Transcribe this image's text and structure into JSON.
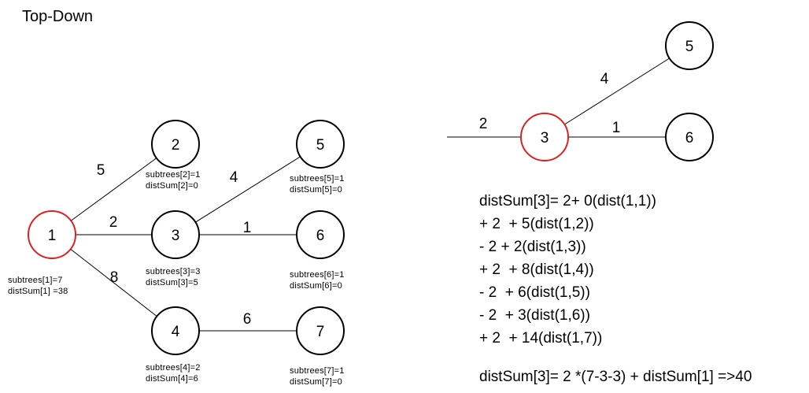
{
  "title": "Top-Down",
  "left_tree": {
    "nodes": [
      {
        "id": "1",
        "label": "1",
        "highlight": true,
        "info": [
          "subtrees[1]=7",
          "distSum[1] =38"
        ]
      },
      {
        "id": "2",
        "label": "2",
        "highlight": false,
        "info": [
          "subtrees[2]=1",
          "distSum[2]=0"
        ]
      },
      {
        "id": "3",
        "label": "3",
        "highlight": false,
        "info": [
          "subtrees[3]=3",
          "distSum[3]=5"
        ]
      },
      {
        "id": "4",
        "label": "4",
        "highlight": false,
        "info": [
          "subtrees[4]=2",
          "distSum[4]=6"
        ]
      },
      {
        "id": "5",
        "label": "5",
        "highlight": false,
        "info": [
          "subtrees[5]=1",
          "distSum[5]=0"
        ]
      },
      {
        "id": "6",
        "label": "6",
        "highlight": false,
        "info": [
          "subtrees[6]=1",
          "distSum[6]=0"
        ]
      },
      {
        "id": "7",
        "label": "7",
        "highlight": false,
        "info": [
          "subtrees[7]=1",
          "distSum[7]=0"
        ]
      }
    ],
    "edges": [
      {
        "from": "1",
        "to": "2",
        "weight": "5"
      },
      {
        "from": "1",
        "to": "3",
        "weight": "2"
      },
      {
        "from": "1",
        "to": "4",
        "weight": "8"
      },
      {
        "from": "3",
        "to": "5",
        "weight": "4"
      },
      {
        "from": "3",
        "to": "6",
        "weight": "1"
      },
      {
        "from": "4",
        "to": "7",
        "weight": "6"
      }
    ]
  },
  "right_tree": {
    "nodes": [
      {
        "id": "3",
        "label": "3",
        "highlight": true
      },
      {
        "id": "5",
        "label": "5",
        "highlight": false
      },
      {
        "id": "6",
        "label": "6",
        "highlight": false
      }
    ],
    "edges": [
      {
        "from": "parent",
        "to": "3",
        "weight": "2"
      },
      {
        "from": "3",
        "to": "5",
        "weight": "4"
      },
      {
        "from": "3",
        "to": "6",
        "weight": "1"
      }
    ]
  },
  "formula_lines": [
    "distSum[3]= 2+ 0(dist(1,1))",
    "+ 2  + 5(dist(1,2))",
    "- 2 + 2(dist(1,3))",
    "+ 2  + 8(dist(1,4))",
    "- 2  + 6(dist(1,5))",
    "- 2  + 3(dist(1,6))",
    "+ 2  + 14(dist(1,7))"
  ],
  "summary": "distSum[3]= 2 *(7-3-3) + distSum[1] =>40",
  "colors": {
    "highlight_stroke": "#e02020",
    "node_stroke": "#000000",
    "edge": "#000000"
  }
}
